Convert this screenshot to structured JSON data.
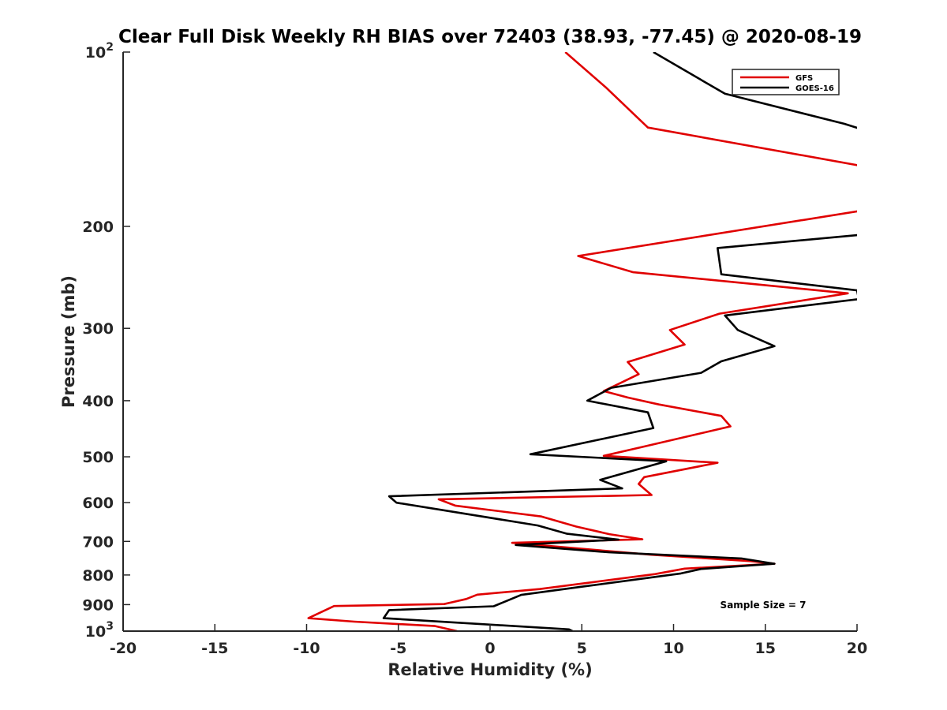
{
  "chart_data": {
    "type": "line",
    "title": "Clear Full Disk Weekly RH BIAS over 72403 (38.93, -77.45) @ 2020-08-19",
    "xlabel": "Relative Humidity (%)",
    "ylabel": "Pressure (mb)",
    "xlim": [
      -20,
      20
    ],
    "ylim": [
      100,
      1000
    ],
    "y_scale": "log",
    "y_reversed": true,
    "xticks": [
      -20,
      -15,
      -10,
      -5,
      0,
      5,
      10,
      15,
      20
    ],
    "xtick_labels": [
      "-20",
      "-15",
      "-10",
      "-5",
      "0",
      "5",
      "10",
      "15",
      "20"
    ],
    "yticks": [
      {
        "value": 100,
        "base": "10",
        "exp": "2"
      },
      {
        "value": 200,
        "label": "200"
      },
      {
        "value": 300,
        "label": "300"
      },
      {
        "value": 400,
        "label": "400"
      },
      {
        "value": 500,
        "label": "500"
      },
      {
        "value": 600,
        "label": "600"
      },
      {
        "value": 700,
        "label": "700"
      },
      {
        "value": 800,
        "label": "800"
      },
      {
        "value": 900,
        "label": "900"
      },
      {
        "value": 1000,
        "base": "10",
        "exp": "3"
      }
    ],
    "grid": false,
    "legend_position": "top-right",
    "annotation": "Sample Size = 7",
    "series": [
      {
        "name": "GFS",
        "color": "#e00000",
        "points": [
          [
            4.1,
            100
          ],
          [
            6.3,
            115
          ],
          [
            8.6,
            135
          ],
          [
            20.6,
            158
          ],
          [
            20.2,
            188
          ],
          [
            4.8,
            225
          ],
          [
            7.8,
            240
          ],
          [
            19.5,
            261
          ],
          [
            12.5,
            283
          ],
          [
            9.8,
            302
          ],
          [
            10.6,
            320
          ],
          [
            7.5,
            343
          ],
          [
            8.1,
            360
          ],
          [
            6.2,
            385
          ],
          [
            7.5,
            395
          ],
          [
            9.2,
            406
          ],
          [
            12.6,
            425
          ],
          [
            13.1,
            443
          ],
          [
            8.4,
            480
          ],
          [
            6.2,
            498
          ],
          [
            12.4,
            512
          ],
          [
            8.4,
            542
          ],
          [
            8.1,
            557
          ],
          [
            8.8,
            582
          ],
          [
            -2.8,
            592
          ],
          [
            -1.9,
            607
          ],
          [
            2.8,
            634
          ],
          [
            4.7,
            660
          ],
          [
            6.5,
            680
          ],
          [
            8.3,
            694
          ],
          [
            1.2,
            704
          ],
          [
            8.8,
            738
          ],
          [
            14.2,
            757
          ],
          [
            15.5,
            765
          ],
          [
            10.6,
            780
          ],
          [
            9.0,
            797
          ],
          [
            2.7,
            846
          ],
          [
            -0.7,
            865
          ],
          [
            -1.3,
            880
          ],
          [
            -2.5,
            898
          ],
          [
            -8.5,
            905
          ],
          [
            -9.9,
            950
          ],
          [
            -7.4,
            963
          ],
          [
            -3.0,
            980
          ],
          [
            -1.8,
            1000
          ]
        ]
      },
      {
        "name": "GOES-16",
        "color": "#000000",
        "points": [
          [
            8.9,
            100
          ],
          [
            12.8,
            118
          ],
          [
            19.3,
            133
          ],
          [
            20.6,
            137
          ],
          [
            20.1,
            207
          ],
          [
            12.4,
            218
          ],
          [
            12.6,
            242
          ],
          [
            20.0,
            258
          ],
          [
            20.1,
            267
          ],
          [
            12.8,
            285
          ],
          [
            13.5,
            302
          ],
          [
            15.5,
            322
          ],
          [
            12.6,
            342
          ],
          [
            11.5,
            358
          ],
          [
            6.6,
            380
          ],
          [
            5.3,
            400
          ],
          [
            8.6,
            419
          ],
          [
            8.9,
            446
          ],
          [
            2.2,
            495
          ],
          [
            9.6,
            509
          ],
          [
            6.0,
            548
          ],
          [
            7.2,
            567
          ],
          [
            -5.5,
            585
          ],
          [
            -5.1,
            600
          ],
          [
            -0.7,
            632
          ],
          [
            2.6,
            657
          ],
          [
            4.2,
            679
          ],
          [
            7.0,
            695
          ],
          [
            1.4,
            710
          ],
          [
            6.5,
            731
          ],
          [
            13.7,
            749
          ],
          [
            15.5,
            765
          ],
          [
            11.5,
            781
          ],
          [
            10.4,
            795
          ],
          [
            5.0,
            838
          ],
          [
            1.7,
            866
          ],
          [
            0.2,
            906
          ],
          [
            -5.5,
            920
          ],
          [
            -5.8,
            950
          ],
          [
            4.3,
            993
          ],
          [
            4.5,
            1000
          ]
        ]
      }
    ]
  }
}
